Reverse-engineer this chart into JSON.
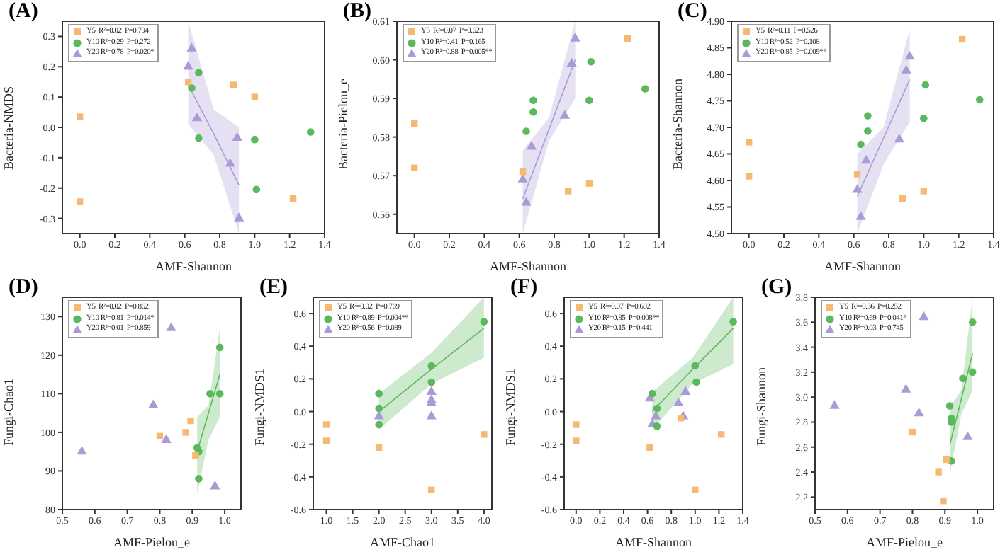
{
  "chart_data": [
    {
      "type": "scatter",
      "title": "(A)",
      "xlabel": "AMF-Shannon",
      "ylabel": "Bacteria-NMDS",
      "legend": "top left",
      "xlim": [
        -0.1,
        1.4
      ],
      "xticks": [
        {
          "value": 0,
          "label": "0.0"
        },
        0.2,
        0.4,
        0.6,
        0.8,
        {
          "value": 1,
          "label": "1.0"
        },
        1.2,
        1.4
      ],
      "ylim": [
        -0.35,
        0.35
      ],
      "yticks": [
        -0.3,
        -0.2,
        -0.1,
        {
          "value": 0,
          "label": "0.0"
        },
        0.1,
        0.2,
        0.3
      ],
      "series": [
        {
          "name": "Y5  R²=0.02  P=0.794",
          "color": "#f5b971",
          "marker": "square",
          "x": [
            0,
            0,
            0.62,
            0.88,
            1.0,
            1.22
          ],
          "values": [
            0.035,
            -0.245,
            0.15,
            0.14,
            0.1,
            -0.235
          ]
        },
        {
          "name": "Y10 R²=0.29  P=0.272",
          "color": "#5cb85c",
          "marker": "circle",
          "x": [
            0.64,
            0.68,
            0.68,
            1.0,
            1.01,
            1.32
          ],
          "values": [
            0.13,
            0.18,
            -0.035,
            -0.04,
            -0.205,
            -0.015
          ]
        },
        {
          "name": "Y20 R²=0.78  P=0.020*",
          "color": "#a99bd6",
          "marker": "triangle",
          "x": [
            0.62,
            0.64,
            0.67,
            0.86,
            0.9,
            0.91
          ],
          "values": [
            0.2,
            0.26,
            0.03,
            -0.12,
            -0.035,
            -0.3
          ]
        },
        {
          "type": "line",
          "color": "#a99bd6",
          "marker": "none",
          "x": [
            0.62,
            0.765,
            0.91
          ],
          "values": [
            0.14,
            -0.02,
            -0.19
          ],
          "lower": [
            0.01,
            -0.09,
            -0.35
          ],
          "upper": [
            0.35,
            0.06,
            0.0
          ]
        }
      ]
    },
    {
      "type": "scatter",
      "title": "(B)",
      "xlabel": "AMF-Shannon",
      "ylabel": "Bacteria-Pielou_e",
      "legend": "top left",
      "xlim": [
        -0.1,
        1.4
      ],
      "xticks": [
        {
          "value": 0,
          "label": "0.0"
        },
        0.2,
        0.4,
        0.6,
        0.8,
        {
          "value": 1,
          "label": "1.0"
        },
        1.2,
        1.4
      ],
      "ylim": [
        0.555,
        0.61
      ],
      "yticks": [
        0.56,
        0.57,
        0.58,
        0.59,
        {
          "value": 0.6,
          "label": "0.60"
        },
        0.61
      ],
      "series": [
        {
          "name": "Y5  R²=0.07  P=0.623",
          "color": "#f5b971",
          "marker": "square",
          "x": [
            0,
            0,
            0.62,
            0.88,
            1.0,
            1.22
          ],
          "values": [
            0.5835,
            0.572,
            0.571,
            0.566,
            0.568,
            0.6055
          ]
        },
        {
          "name": "Y10 R²=0.41  P=0.165",
          "color": "#5cb85c",
          "marker": "circle",
          "x": [
            0.64,
            0.68,
            0.68,
            1.0,
            1.01,
            1.32
          ],
          "values": [
            0.5815,
            0.5865,
            0.5895,
            0.5895,
            0.5995,
            0.5925
          ]
        },
        {
          "name": "Y20 R²=0.88  P=0.005**",
          "color": "#a99bd6",
          "marker": "triangle",
          "x": [
            0.62,
            0.64,
            0.67,
            0.86,
            0.9,
            0.92
          ],
          "values": [
            0.569,
            0.563,
            0.5775,
            0.5855,
            0.599,
            0.6055
          ]
        },
        {
          "type": "line",
          "color": "#a99bd6",
          "marker": "none",
          "x": [
            0.62,
            0.77,
            0.92
          ],
          "values": [
            0.564,
            0.582,
            0.6
          ],
          "lower": [
            0.555,
            0.579,
            0.59
          ],
          "upper": [
            0.5765,
            0.585,
            0.61
          ]
        }
      ]
    },
    {
      "type": "scatter",
      "title": "(C)",
      "xlabel": "AMF-Shannon",
      "ylabel": "Bacteria-Shannon",
      "legend": "top left",
      "xlim": [
        -0.1,
        1.4
      ],
      "xticks": [
        {
          "value": 0,
          "label": "0.0"
        },
        0.2,
        0.4,
        0.6,
        0.8,
        {
          "value": 1,
          "label": "1.0"
        },
        1.2,
        1.4
      ],
      "ylim": [
        4.5,
        4.9
      ],
      "yticks": [
        {
          "value": 4.5,
          "label": "4.50"
        },
        4.55,
        {
          "value": 4.6,
          "label": "4.60"
        },
        4.65,
        {
          "value": 4.7,
          "label": "4.70"
        },
        4.75,
        {
          "value": 4.8,
          "label": "4.80"
        },
        4.85,
        {
          "value": 4.9,
          "label": "4.90"
        }
      ],
      "series": [
        {
          "name": "Y5  R²=0.11  P=0.526",
          "color": "#f5b971",
          "marker": "square",
          "x": [
            0,
            0,
            0.62,
            0.88,
            1.0,
            1.22
          ],
          "values": [
            4.672,
            4.608,
            4.612,
            4.566,
            4.58,
            4.866
          ]
        },
        {
          "name": "Y10 R²=0.52  P=0.108",
          "color": "#5cb85c",
          "marker": "circle",
          "x": [
            0.64,
            0.68,
            0.68,
            1.0,
            1.01,
            1.32
          ],
          "values": [
            4.668,
            4.722,
            4.693,
            4.717,
            4.78,
            4.752
          ]
        },
        {
          "name": "Y20 R²=0.85  P=0.009**",
          "color": "#a99bd6",
          "marker": "triangle",
          "x": [
            0.62,
            0.64,
            0.67,
            0.86,
            0.9,
            0.92
          ],
          "values": [
            4.582,
            4.531,
            4.637,
            4.677,
            4.807,
            4.833
          ]
        },
        {
          "type": "line",
          "color": "#a99bd6",
          "marker": "none",
          "x": [
            0.62,
            0.77,
            0.92
          ],
          "values": [
            4.57,
            4.68,
            4.79
          ],
          "lower": [
            4.5,
            4.63,
            4.71
          ],
          "upper": [
            4.65,
            4.7,
            4.885
          ]
        }
      ]
    },
    {
      "type": "scatter",
      "title": "(D)",
      "xlabel": "AMF-Pielou_e",
      "ylabel": "Fungi-Chao1",
      "legend": "top left",
      "xlim": [
        0.5,
        1.05
      ],
      "xticks": [
        0.5,
        0.6,
        0.7,
        0.8,
        0.9,
        {
          "value": 1,
          "label": "1.0"
        }
      ],
      "ylim": [
        80,
        135
      ],
      "yticks": [
        80,
        90,
        100,
        110,
        120,
        130
      ],
      "series": [
        {
          "name": "Y5  R²=0.02  P=0.862",
          "color": "#f5b971",
          "marker": "square",
          "x": [
            0.8,
            0.88,
            0.895,
            0.91
          ],
          "values": [
            99,
            100,
            103,
            94
          ]
        },
        {
          "name": "Y10 R²=0.81  P=0.014*",
          "color": "#5cb85c",
          "marker": "circle",
          "x": [
            0.915,
            0.92,
            0.92,
            0.955,
            0.985,
            0.985
          ],
          "values": [
            96,
            95,
            88,
            110,
            110,
            122
          ]
        },
        {
          "name": "Y20 R²=0.01  P=0.859",
          "color": "#a99bd6",
          "marker": "triangle",
          "x": [
            0.56,
            0.78,
            0.82,
            0.835,
            0.97
          ],
          "values": [
            95,
            107,
            98,
            127,
            86
          ]
        },
        {
          "type": "line",
          "color": "#5cb85c",
          "marker": "none",
          "x": [
            0.915,
            0.95,
            0.985
          ],
          "values": [
            95,
            105,
            115
          ],
          "lower": [
            84,
            98,
            104
          ],
          "upper": [
            104,
            107,
            127
          ]
        }
      ]
    },
    {
      "type": "scatter",
      "title": "(E)",
      "xlabel": "AMF-Chao1",
      "ylabel": "Fungi-NMDS1",
      "legend": "top left",
      "xlim": [
        0.75,
        4.15
      ],
      "xticks": [
        {
          "value": 1,
          "label": "1.0"
        },
        1.5,
        {
          "value": 2,
          "label": "2.0"
        },
        2.5,
        {
          "value": 3,
          "label": "3.0"
        },
        3.5,
        {
          "value": 4,
          "label": "4.0"
        }
      ],
      "ylim": [
        -0.6,
        0.7
      ],
      "yticks": [
        -0.6,
        -0.4,
        -0.2,
        {
          "value": 0,
          "label": "0.0"
        },
        0.2,
        0.4,
        0.6
      ],
      "series": [
        {
          "name": "Y5  R²=0.02  P=0.769",
          "color": "#f5b971",
          "marker": "square",
          "x": [
            1,
            1,
            2,
            3,
            4
          ],
          "values": [
            -0.08,
            -0.18,
            -0.22,
            -0.48,
            -0.14
          ]
        },
        {
          "name": "Y10 R²=0.89  P=0.004**",
          "color": "#5cb85c",
          "marker": "circle",
          "x": [
            2,
            2,
            2,
            3,
            3,
            4
          ],
          "values": [
            0.11,
            0.02,
            -0.08,
            0.28,
            0.18,
            0.55
          ]
        },
        {
          "name": "Y20 R²=0.56  P=0.089",
          "color": "#a99bd6",
          "marker": "triangle",
          "x": [
            2,
            3,
            3,
            3,
            3
          ],
          "values": [
            -0.03,
            0.12,
            0.07,
            0.05,
            -0.03
          ]
        },
        {
          "type": "line",
          "color": "#5cb85c",
          "marker": "none",
          "x": [
            2,
            3,
            4
          ],
          "values": [
            0.0,
            0.26,
            0.51
          ],
          "lower": [
            -0.11,
            0.17,
            0.33
          ],
          "upper": [
            0.11,
            0.36,
            0.7
          ]
        }
      ]
    },
    {
      "type": "scatter",
      "title": "(F)",
      "xlabel": "AMF-Shannon",
      "ylabel": "Fungi-NMDS1",
      "legend": "top left",
      "xlim": [
        -0.1,
        1.4
      ],
      "xticks": [
        {
          "value": 0,
          "label": "0.0"
        },
        0.2,
        0.4,
        0.6,
        0.8,
        {
          "value": 1,
          "label": "1.0"
        },
        1.2,
        1.4
      ],
      "ylim": [
        -0.6,
        0.7
      ],
      "yticks": [
        -0.6,
        -0.4,
        -0.2,
        {
          "value": 0,
          "label": "0.0"
        },
        0.2,
        0.4,
        0.6
      ],
      "series": [
        {
          "name": "Y5  R²=0.07  P=0.602",
          "color": "#f5b971",
          "marker": "square",
          "x": [
            0,
            0,
            0.62,
            0.88,
            1.0,
            1.22
          ],
          "values": [
            -0.08,
            -0.18,
            -0.22,
            -0.04,
            -0.48,
            -0.14
          ]
        },
        {
          "name": "Y10 R²=0.85  P=0.008**",
          "color": "#5cb85c",
          "marker": "circle",
          "x": [
            0.64,
            0.68,
            0.68,
            1.0,
            1.01,
            1.32
          ],
          "values": [
            0.11,
            0.02,
            -0.09,
            0.28,
            0.18,
            0.55
          ]
        },
        {
          "name": "Y20 R²=0.15  P=0.441",
          "color": "#a99bd6",
          "marker": "triangle",
          "x": [
            0.62,
            0.64,
            0.67,
            0.86,
            0.9,
            0.92
          ],
          "values": [
            0.08,
            -0.08,
            -0.03,
            0.05,
            -0.03,
            0.12
          ]
        },
        {
          "type": "line",
          "color": "#5cb85c",
          "marker": "none",
          "x": [
            0.64,
            0.98,
            1.32
          ],
          "values": [
            0.0,
            0.26,
            0.51
          ],
          "lower": [
            -0.11,
            0.17,
            0.29
          ],
          "upper": [
            0.12,
            0.33,
            0.7
          ]
        }
      ]
    },
    {
      "type": "scatter",
      "title": "(G)",
      "xlabel": "AMF-Pielou_e",
      "ylabel": "Fungi-Shannon",
      "legend": "top left",
      "xlim": [
        0.5,
        1.05
      ],
      "xticks": [
        0.5,
        0.6,
        0.7,
        0.8,
        0.9,
        {
          "value": 1,
          "label": "1.0"
        }
      ],
      "ylim": [
        2.1,
        3.8
      ],
      "yticks": [
        2.2,
        2.4,
        2.6,
        2.8,
        {
          "value": 3,
          "label": "3.0"
        },
        3.2,
        3.4,
        3.6,
        3.8
      ],
      "series": [
        {
          "name": "Y5  R²=0.36  P=0.252",
          "color": "#f5b971",
          "marker": "square",
          "x": [
            0.8,
            0.88,
            0.895,
            0.905
          ],
          "values": [
            2.72,
            2.4,
            2.17,
            2.5
          ]
        },
        {
          "name": "Y10 R²=0.69  P=0.041*",
          "color": "#5cb85c",
          "marker": "circle",
          "x": [
            0.915,
            0.92,
            0.92,
            0.92,
            0.955,
            0.985,
            0.985
          ],
          "values": [
            2.93,
            2.83,
            2.8,
            2.49,
            3.15,
            3.2,
            3.6
          ]
        },
        {
          "name": "Y20 R²=0.03  P=0.745",
          "color": "#a99bd6",
          "marker": "triangle",
          "x": [
            0.56,
            0.78,
            0.82,
            0.835,
            0.97
          ],
          "values": [
            2.93,
            3.06,
            2.87,
            3.64,
            2.68
          ]
        },
        {
          "type": "line",
          "color": "#5cb85c",
          "marker": "none",
          "x": [
            0.915,
            0.95,
            0.985
          ],
          "values": [
            2.62,
            2.98,
            3.35
          ],
          "lower": [
            2.38,
            2.86,
            3.05
          ],
          "upper": [
            2.92,
            3.05,
            3.8
          ]
        }
      ]
    }
  ]
}
